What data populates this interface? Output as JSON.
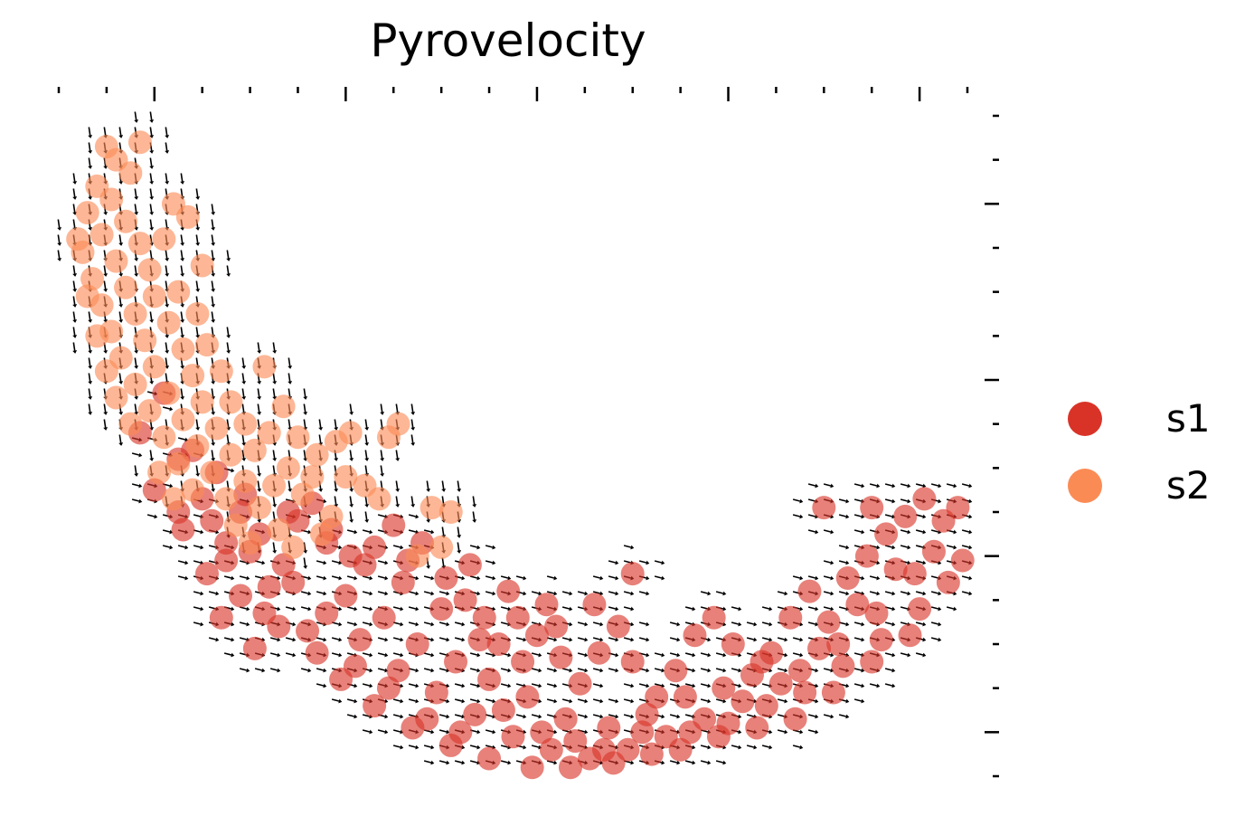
{
  "chart_data": {
    "type": "scatter",
    "title": "Pyrovelocity",
    "xlabel": "",
    "ylabel": "",
    "xlim": [
      0,
      19
    ],
    "ylim": [
      0,
      15
    ],
    "grid": false,
    "legend_position": "right",
    "series": [
      {
        "name": "s1",
        "color": "#d93328",
        "points": [
          [
            1.7,
            7.8
          ],
          [
            2.2,
            8.7
          ],
          [
            2.5,
            7.2
          ],
          [
            2.0,
            6.5
          ],
          [
            2.5,
            6.0
          ],
          [
            3.0,
            6.3
          ],
          [
            2.6,
            5.6
          ],
          [
            3.5,
            5.3
          ],
          [
            3.8,
            6.0
          ],
          [
            3.2,
            5.8
          ],
          [
            3.5,
            4.9
          ],
          [
            4.0,
            5.1
          ],
          [
            4.4,
            4.3
          ],
          [
            4.7,
            4.8
          ],
          [
            4.2,
            5.5
          ],
          [
            5.0,
            5.8
          ],
          [
            5.3,
            6.2
          ],
          [
            5.7,
            5.6
          ],
          [
            6.1,
            5.0
          ],
          [
            6.6,
            5.2
          ],
          [
            7.0,
            5.7
          ],
          [
            7.3,
            4.9
          ],
          [
            7.6,
            5.3
          ],
          [
            8.1,
            4.5
          ],
          [
            8.5,
            4.0
          ],
          [
            8.9,
            3.6
          ],
          [
            9.2,
            3.0
          ],
          [
            9.6,
            3.6
          ],
          [
            10.0,
            3.2
          ],
          [
            10.5,
            2.7
          ],
          [
            10.9,
            2.1
          ],
          [
            11.3,
            2.8
          ],
          [
            11.7,
            3.4
          ],
          [
            12.0,
            2.6
          ],
          [
            12.5,
            1.8
          ],
          [
            12.9,
            2.4
          ],
          [
            13.3,
            3.2
          ],
          [
            13.7,
            3.6
          ],
          [
            14.1,
            3.0
          ],
          [
            14.5,
            2.3
          ],
          [
            14.9,
            2.8
          ],
          [
            15.3,
            3.6
          ],
          [
            15.7,
            4.2
          ],
          [
            16.1,
            3.5
          ],
          [
            16.5,
            4.5
          ],
          [
            16.9,
            5.0
          ],
          [
            17.3,
            5.5
          ],
          [
            17.7,
            5.9
          ],
          [
            18.1,
            6.3
          ],
          [
            18.5,
            5.8
          ],
          [
            18.8,
            6.1
          ],
          [
            17.5,
            4.7
          ],
          [
            16.7,
            3.9
          ],
          [
            15.9,
            2.9
          ],
          [
            15.1,
            2.1
          ],
          [
            14.3,
            1.7
          ],
          [
            13.5,
            1.3
          ],
          [
            12.7,
            0.9
          ],
          [
            11.9,
            0.6
          ],
          [
            11.1,
            0.4
          ],
          [
            10.3,
            0.6
          ],
          [
            9.5,
            0.9
          ],
          [
            8.7,
            1.4
          ],
          [
            7.9,
            1.9
          ],
          [
            7.1,
            2.4
          ],
          [
            6.3,
            3.1
          ],
          [
            5.6,
            3.7
          ],
          [
            4.9,
            4.4
          ],
          [
            4.3,
            3.7
          ],
          [
            5.2,
            3.3
          ],
          [
            6.0,
            4.1
          ],
          [
            6.8,
            3.6
          ],
          [
            7.5,
            3.0
          ],
          [
            8.3,
            2.6
          ],
          [
            9.0,
            2.2
          ],
          [
            9.8,
            1.8
          ],
          [
            10.6,
            1.3
          ],
          [
            11.5,
            1.1
          ],
          [
            12.3,
            1.4
          ],
          [
            13.1,
            1.8
          ],
          [
            13.9,
            2.0
          ],
          [
            14.7,
            2.6
          ],
          [
            15.5,
            2.4
          ],
          [
            16.3,
            3.0
          ],
          [
            17.1,
            3.7
          ],
          [
            17.9,
            4.6
          ],
          [
            18.3,
            5.1
          ],
          [
            16.0,
            6.1
          ],
          [
            17.0,
            6.1
          ],
          [
            12.0,
            4.6
          ],
          [
            11.2,
            3.9
          ],
          [
            10.4,
            3.4
          ],
          [
            9.7,
            2.6
          ],
          [
            8.8,
            3.1
          ],
          [
            8.0,
            3.8
          ],
          [
            7.2,
            4.4
          ],
          [
            6.4,
            4.8
          ],
          [
            5.6,
            5.3
          ],
          [
            4.8,
            6.0
          ],
          [
            3.9,
            6.4
          ],
          [
            3.3,
            6.9
          ],
          [
            2.8,
            7.4
          ],
          [
            6.9,
            2.0
          ],
          [
            7.7,
            1.3
          ],
          [
            8.4,
            1.0
          ],
          [
            9.3,
            1.5
          ],
          [
            10.1,
            1.0
          ],
          [
            10.8,
            0.8
          ],
          [
            11.6,
            0.3
          ],
          [
            12.4,
            0.5
          ],
          [
            13.2,
            1.0
          ],
          [
            14.0,
            1.2
          ],
          [
            14.8,
            1.6
          ],
          [
            15.6,
            1.9
          ],
          [
            16.4,
            2.5
          ],
          [
            17.2,
            3.1
          ],
          [
            18.0,
            3.8
          ],
          [
            8.6,
            4.8
          ],
          [
            9.4,
            4.2
          ],
          [
            10.2,
            3.9
          ],
          [
            3.1,
            4.6
          ],
          [
            3.8,
            4.1
          ],
          [
            4.6,
            3.4
          ],
          [
            5.4,
            2.8
          ],
          [
            6.2,
            2.5
          ],
          [
            6.6,
            1.6
          ],
          [
            7.4,
            1.1
          ],
          [
            8.2,
            0.7
          ],
          [
            9.0,
            0.4
          ],
          [
            9.9,
            0.2
          ],
          [
            10.7,
            0.2
          ],
          [
            11.4,
            0.6
          ],
          [
            12.2,
            1.0
          ],
          [
            13.0,
            0.6
          ],
          [
            13.8,
            0.9
          ],
          [
            14.6,
            1.1
          ],
          [
            15.4,
            1.3
          ],
          [
            16.2,
            1.9
          ],
          [
            17.0,
            2.6
          ],
          [
            17.8,
            3.2
          ],
          [
            18.6,
            4.4
          ],
          [
            18.9,
            4.9
          ],
          [
            5.9,
            2.2
          ],
          [
            4.1,
            2.9
          ],
          [
            3.4,
            3.6
          ]
        ]
      },
      {
        "name": "s2",
        "color": "#fb8b55",
        "points": [
          [
            1.2,
            14.0
          ],
          [
            1.5,
            13.7
          ],
          [
            0.8,
            13.4
          ],
          [
            1.1,
            13.1
          ],
          [
            0.6,
            12.8
          ],
          [
            1.4,
            12.6
          ],
          [
            0.9,
            12.3
          ],
          [
            1.7,
            12.1
          ],
          [
            0.5,
            11.9
          ],
          [
            1.2,
            11.7
          ],
          [
            1.9,
            11.5
          ],
          [
            0.7,
            11.3
          ],
          [
            1.4,
            11.1
          ],
          [
            2.0,
            10.9
          ],
          [
            0.9,
            10.7
          ],
          [
            1.6,
            10.5
          ],
          [
            2.3,
            10.3
          ],
          [
            1.1,
            10.1
          ],
          [
            1.8,
            9.9
          ],
          [
            2.6,
            9.7
          ],
          [
            1.3,
            9.5
          ],
          [
            2.0,
            9.3
          ],
          [
            2.8,
            9.1
          ],
          [
            1.6,
            8.9
          ],
          [
            2.3,
            8.7
          ],
          [
            3.0,
            8.5
          ],
          [
            1.9,
            8.3
          ],
          [
            2.6,
            8.1
          ],
          [
            3.3,
            7.9
          ],
          [
            2.2,
            7.7
          ],
          [
            2.9,
            7.5
          ],
          [
            3.6,
            7.3
          ],
          [
            2.5,
            7.1
          ],
          [
            3.2,
            6.9
          ],
          [
            3.9,
            6.7
          ],
          [
            2.8,
            6.5
          ],
          [
            3.5,
            6.3
          ],
          [
            4.2,
            6.1
          ],
          [
            4.5,
            6.6
          ],
          [
            4.8,
            7.0
          ],
          [
            5.1,
            6.4
          ],
          [
            5.4,
            7.3
          ],
          [
            5.8,
            7.6
          ],
          [
            6.1,
            7.8
          ],
          [
            6.4,
            6.6
          ],
          [
            6.7,
            6.3
          ],
          [
            7.1,
            8.0
          ],
          [
            4.3,
            9.3
          ],
          [
            7.5,
            5.0
          ],
          [
            7.8,
            6.1
          ],
          [
            8.2,
            6.0
          ],
          [
            1.0,
            14.3
          ],
          [
            1.7,
            14.4
          ],
          [
            2.4,
            13.0
          ],
          [
            2.2,
            12.2
          ],
          [
            2.5,
            11.0
          ],
          [
            2.9,
            10.5
          ],
          [
            3.1,
            9.8
          ],
          [
            3.4,
            9.2
          ],
          [
            3.6,
            8.5
          ],
          [
            3.9,
            8.0
          ],
          [
            4.1,
            7.4
          ],
          [
            4.4,
            7.8
          ],
          [
            4.7,
            8.4
          ],
          [
            5.0,
            7.7
          ],
          [
            5.3,
            6.8
          ],
          [
            2.7,
            12.7
          ],
          [
            3.0,
            11.6
          ],
          [
            0.4,
            12.2
          ],
          [
            0.6,
            10.9
          ],
          [
            0.8,
            10.0
          ],
          [
            1.0,
            9.2
          ],
          [
            1.2,
            8.6
          ],
          [
            1.5,
            8.0
          ],
          [
            2.1,
            6.9
          ],
          [
            2.4,
            6.3
          ],
          [
            3.7,
            5.7
          ],
          [
            4.0,
            5.3
          ],
          [
            4.6,
            5.6
          ],
          [
            5.7,
            5.9
          ],
          [
            6.9,
            7.7
          ],
          [
            6.0,
            6.8
          ],
          [
            5.5,
            5.5
          ],
          [
            4.9,
            5.2
          ],
          [
            8.0,
            5.2
          ]
        ]
      }
    ],
    "legend": [
      "s1",
      "s2"
    ]
  }
}
